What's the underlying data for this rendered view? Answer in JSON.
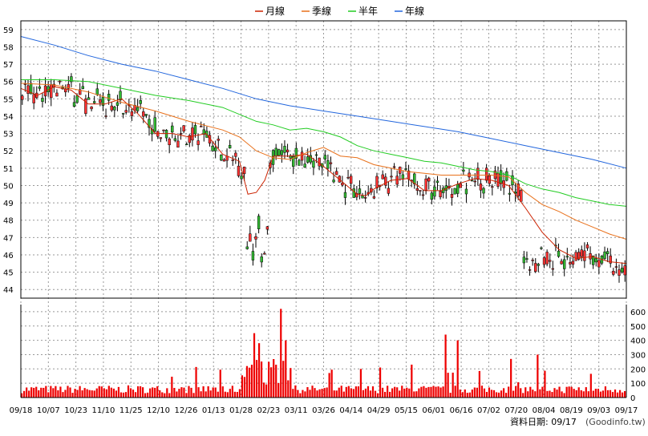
{
  "legend": [
    {
      "label": "月線",
      "color": "#cc2200"
    },
    {
      "label": "季線",
      "color": "#e8701a"
    },
    {
      "label": "半年",
      "color": "#22cc22"
    },
    {
      "label": "年線",
      "color": "#2266dd"
    }
  ],
  "footer": {
    "date_label": "資料日期: 09/17",
    "source": "(Goodinfo.tw)"
  },
  "chart_data": {
    "type": "candlestick",
    "x_ticks": [
      "09/18",
      "10/07",
      "10/23",
      "11/10",
      "11/25",
      "12/10",
      "12/26",
      "01/13",
      "01/28",
      "02/23",
      "03/11",
      "03/26",
      "04/14",
      "04/29",
      "05/15",
      "06/01",
      "06/16",
      "07/02",
      "07/20",
      "08/04",
      "08/19",
      "09/03",
      "09/17"
    ],
    "price_axis": {
      "ticks": [
        44,
        45,
        46,
        47,
        48,
        49,
        50,
        51,
        52,
        53,
        54,
        55,
        56,
        57,
        58,
        59
      ],
      "ylim": [
        43.5,
        59.5
      ]
    },
    "volume_axis": {
      "ticks": [
        0,
        100,
        200,
        300,
        400,
        500,
        600
      ],
      "ylim": [
        0,
        650
      ]
    },
    "ma_lines": [
      {
        "name": "月線",
        "color": "#cc2200",
        "points": [
          [
            0,
            55.6
          ],
          [
            1,
            55.2
          ],
          [
            2,
            55.7
          ],
          [
            3,
            55.5
          ],
          [
            4,
            54.7
          ],
          [
            5,
            54.7
          ],
          [
            6,
            55.0
          ],
          [
            7,
            54.1
          ],
          [
            8,
            53.0
          ],
          [
            9,
            53.0
          ],
          [
            10,
            52.8
          ],
          [
            11,
            53.0
          ],
          [
            12,
            51.8
          ],
          [
            13,
            51.4
          ],
          [
            13.5,
            49.5
          ],
          [
            14,
            49.6
          ],
          [
            14.5,
            50.3
          ],
          [
            15,
            51.7
          ],
          [
            16,
            51.7
          ],
          [
            17,
            51.8
          ],
          [
            18,
            51.1
          ],
          [
            19,
            50.3
          ],
          [
            20,
            49.5
          ],
          [
            20.5,
            49.4
          ],
          [
            21,
            49.8
          ],
          [
            22,
            50.3
          ],
          [
            23,
            50.4
          ],
          [
            24,
            49.7
          ],
          [
            25,
            49.7
          ],
          [
            26,
            50.1
          ],
          [
            27,
            50.4
          ],
          [
            28,
            50.3
          ],
          [
            29,
            50.0
          ],
          [
            30,
            48.7
          ],
          [
            31,
            47.3
          ],
          [
            32,
            46.3
          ],
          [
            33,
            45.8
          ],
          [
            34,
            45.9
          ],
          [
            35,
            45.6
          ],
          [
            36,
            45.5
          ]
        ]
      },
      {
        "name": "季線",
        "color": "#e8701a",
        "points": [
          [
            0,
            55.9
          ],
          [
            2,
            55.8
          ],
          [
            4,
            55.4
          ],
          [
            6,
            54.8
          ],
          [
            8,
            54.3
          ],
          [
            10,
            53.7
          ],
          [
            12,
            53.2
          ],
          [
            13,
            52.8
          ],
          [
            14,
            52.0
          ],
          [
            15,
            51.6
          ],
          [
            16,
            51.5
          ],
          [
            17,
            51.9
          ],
          [
            18,
            52.2
          ],
          [
            19,
            51.7
          ],
          [
            20,
            51.6
          ],
          [
            21,
            51.2
          ],
          [
            22,
            51.0
          ],
          [
            23,
            50.8
          ],
          [
            24,
            50.7
          ],
          [
            25,
            50.6
          ],
          [
            26,
            50.6
          ],
          [
            27,
            50.6
          ],
          [
            28,
            50.6
          ],
          [
            29,
            50.5
          ],
          [
            30,
            49.6
          ],
          [
            31,
            48.9
          ],
          [
            32,
            48.5
          ],
          [
            33,
            48.0
          ],
          [
            34,
            47.6
          ],
          [
            35,
            47.2
          ],
          [
            36,
            46.9
          ]
        ]
      },
      {
        "name": "半年",
        "color": "#22cc22",
        "points": [
          [
            0,
            56.1
          ],
          [
            2,
            56.1
          ],
          [
            4,
            56.0
          ],
          [
            6,
            55.6
          ],
          [
            8,
            55.2
          ],
          [
            10,
            54.9
          ],
          [
            12,
            54.5
          ],
          [
            14,
            53.7
          ],
          [
            15,
            53.5
          ],
          [
            16,
            53.2
          ],
          [
            17,
            53.3
          ],
          [
            18,
            53.1
          ],
          [
            19,
            52.8
          ],
          [
            20,
            52.3
          ],
          [
            21,
            52.0
          ],
          [
            22,
            51.8
          ],
          [
            23,
            51.6
          ],
          [
            24,
            51.4
          ],
          [
            25,
            51.3
          ],
          [
            26,
            51.1
          ],
          [
            27,
            50.9
          ],
          [
            28,
            50.8
          ],
          [
            29,
            50.6
          ],
          [
            30,
            50.1
          ],
          [
            31,
            49.8
          ],
          [
            32,
            49.6
          ],
          [
            33,
            49.3
          ],
          [
            34,
            49.1
          ],
          [
            35,
            48.9
          ],
          [
            36,
            48.8
          ]
        ]
      },
      {
        "name": "年線",
        "color": "#2266dd",
        "points": [
          [
            0,
            58.6
          ],
          [
            2,
            58.1
          ],
          [
            4,
            57.5
          ],
          [
            6,
            57.0
          ],
          [
            8,
            56.6
          ],
          [
            10,
            56.1
          ],
          [
            12,
            55.6
          ],
          [
            14,
            55.0
          ],
          [
            16,
            54.6
          ],
          [
            18,
            54.3
          ],
          [
            20,
            54.0
          ],
          [
            22,
            53.7
          ],
          [
            24,
            53.4
          ],
          [
            26,
            53.1
          ],
          [
            28,
            52.7
          ],
          [
            30,
            52.3
          ],
          [
            32,
            51.9
          ],
          [
            34,
            51.5
          ],
          [
            36,
            51.0
          ]
        ]
      }
    ]
  }
}
